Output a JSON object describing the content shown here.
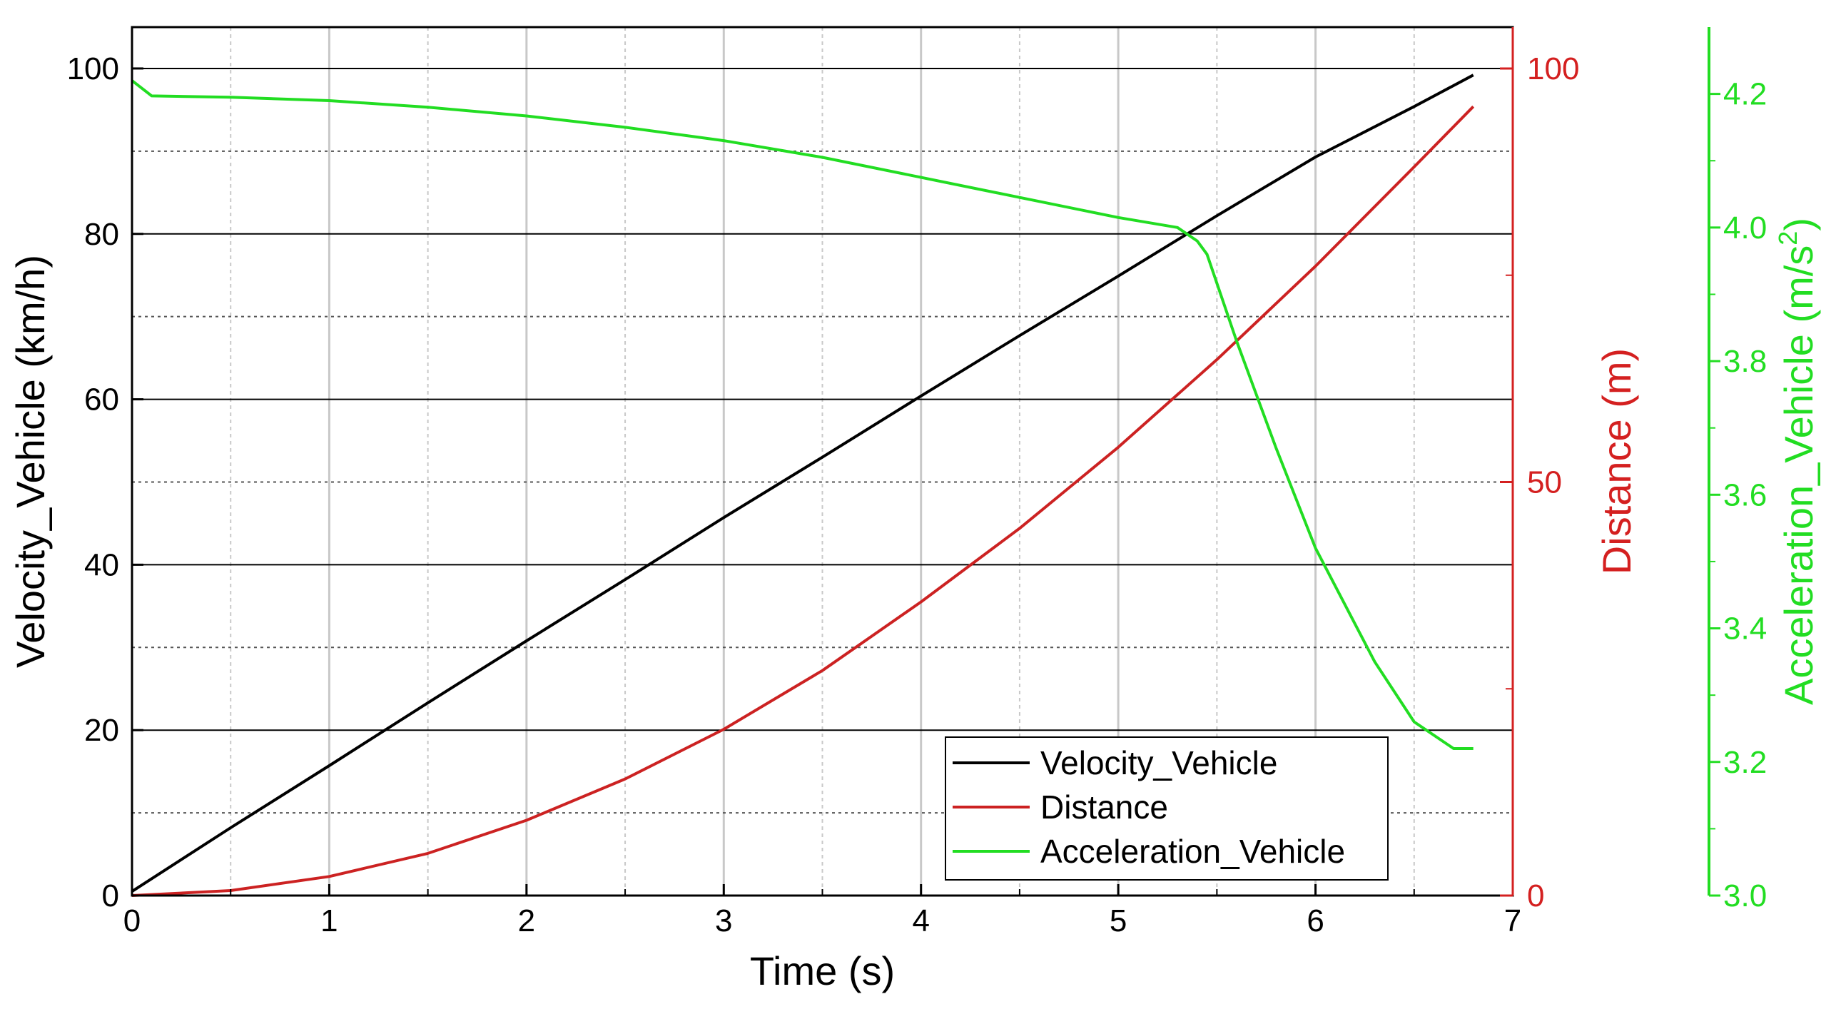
{
  "chart_data": {
    "type": "line",
    "x_axis": {
      "label": "Time (s)",
      "range": [
        0,
        7
      ],
      "ticks": [
        0,
        1,
        2,
        3,
        4,
        5,
        6,
        7
      ],
      "tick_labels": [
        "0",
        "1",
        "2",
        "3",
        "4",
        "5",
        "6",
        "7"
      ]
    },
    "y_axes": [
      {
        "id": "velocity",
        "label": "Velocity_Vehicle (km/h)",
        "range": [
          0,
          105
        ],
        "ticks": [
          0,
          20,
          40,
          60,
          80,
          100
        ],
        "tick_labels": [
          "0",
          "20",
          "40",
          "60",
          "80",
          "100"
        ],
        "color": "#000000",
        "side": "left"
      },
      {
        "id": "distance",
        "label": "Distance (m)",
        "range": [
          0,
          105
        ],
        "ticks": [
          0,
          50,
          100
        ],
        "tick_labels": [
          "0",
          "50",
          "100"
        ],
        "color": "#d42020",
        "side": "right"
      },
      {
        "id": "acceleration",
        "label_main": "Acceleration_Vehicle (m/s",
        "label_sup": "2",
        "label_end": ")",
        "range": [
          3.0,
          4.3
        ],
        "ticks": [
          3.0,
          3.2,
          3.4,
          3.6,
          3.8,
          4.0,
          4.2
        ],
        "tick_labels": [
          "3.0",
          "3.2",
          "3.4",
          "3.6",
          "3.8",
          "4.0",
          "4.2"
        ],
        "color": "#22dd22",
        "side": "right-offset"
      }
    ],
    "series": [
      {
        "name": "Velocity_Vehicle",
        "axis": "velocity",
        "color": "#000000",
        "x": [
          0,
          0.5,
          1,
          1.5,
          2,
          2.5,
          3,
          3.5,
          4,
          4.5,
          5,
          5.5,
          6,
          6.5,
          6.8
        ],
        "y": [
          0.5,
          8.2,
          15.7,
          23.3,
          30.8,
          38.2,
          45.7,
          53.0,
          60.4,
          67.7,
          74.9,
          82.2,
          89.3,
          95.4,
          99.2
        ]
      },
      {
        "name": "Distance",
        "axis": "distance",
        "color": "#cc2222",
        "x": [
          0,
          0.5,
          1,
          1.5,
          2,
          2.5,
          3,
          3.5,
          4,
          4.5,
          5,
          5.5,
          6,
          6.5,
          6.8
        ],
        "y": [
          0,
          0.6,
          2.3,
          5.1,
          9.1,
          14.1,
          20.1,
          27.2,
          35.5,
          44.4,
          54.2,
          64.8,
          76.1,
          88.1,
          95.4
        ]
      },
      {
        "name": "Acceleration_Vehicle",
        "axis": "acceleration",
        "color": "#22dd22",
        "x": [
          0,
          0.1,
          0.5,
          1,
          1.5,
          2,
          2.5,
          3,
          3.5,
          4,
          4.5,
          5,
          5.3,
          5.4,
          5.45,
          5.6,
          5.8,
          6,
          6.3,
          6.5,
          6.7,
          6.8
        ],
        "y": [
          4.22,
          4.197,
          4.195,
          4.19,
          4.18,
          4.167,
          4.15,
          4.13,
          4.105,
          4.075,
          4.045,
          4.015,
          4.0,
          3.98,
          3.96,
          3.83,
          3.67,
          3.52,
          3.35,
          3.26,
          3.22,
          3.22
        ]
      }
    ],
    "legend": {
      "position": "bottom-right",
      "entries": [
        "Velocity_Vehicle",
        "Distance",
        "Acceleration_Vehicle"
      ]
    },
    "grid": true
  }
}
